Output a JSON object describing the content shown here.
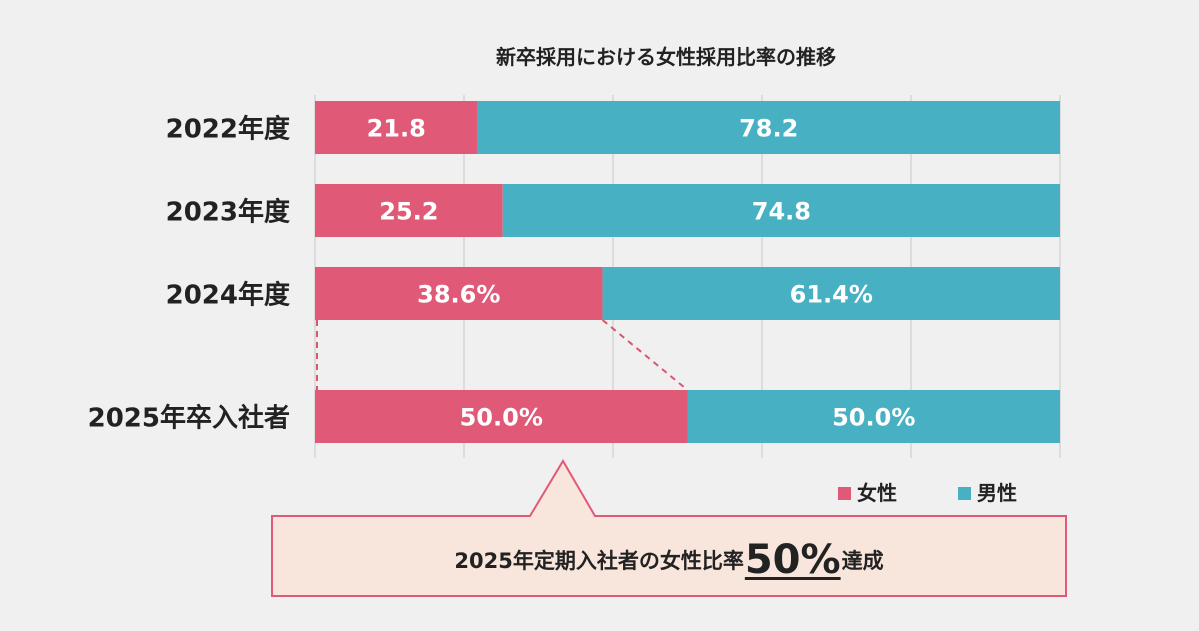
{
  "chart_data": {
    "type": "bar",
    "orientation": "horizontal",
    "stacked": true,
    "title": "新卒採用における女性採用比率の推移",
    "categories": [
      "2022年度",
      "2023年度",
      "2024年度",
      "2025年卒入社者"
    ],
    "series": [
      {
        "name": "女性",
        "values": [
          21.8,
          25.2,
          38.6,
          50.0
        ],
        "labels": [
          "21.8",
          "25.2",
          "38.6%",
          "50.0%"
        ],
        "color": "#e05a78"
      },
      {
        "name": "男性",
        "values": [
          78.2,
          74.8,
          61.4,
          50.0
        ],
        "labels": [
          "78.2",
          "74.8",
          "61.4%",
          "50.0%"
        ],
        "color": "#47b0c3"
      }
    ],
    "xlim": [
      0,
      100
    ],
    "grid": true,
    "legend_placement": "bottom-right"
  },
  "callout": {
    "prefix": "2025年定期入社者の女性比率",
    "highlight": "50%",
    "suffix": "達成",
    "background": "#f8e5dc",
    "border": "#e05a78"
  }
}
